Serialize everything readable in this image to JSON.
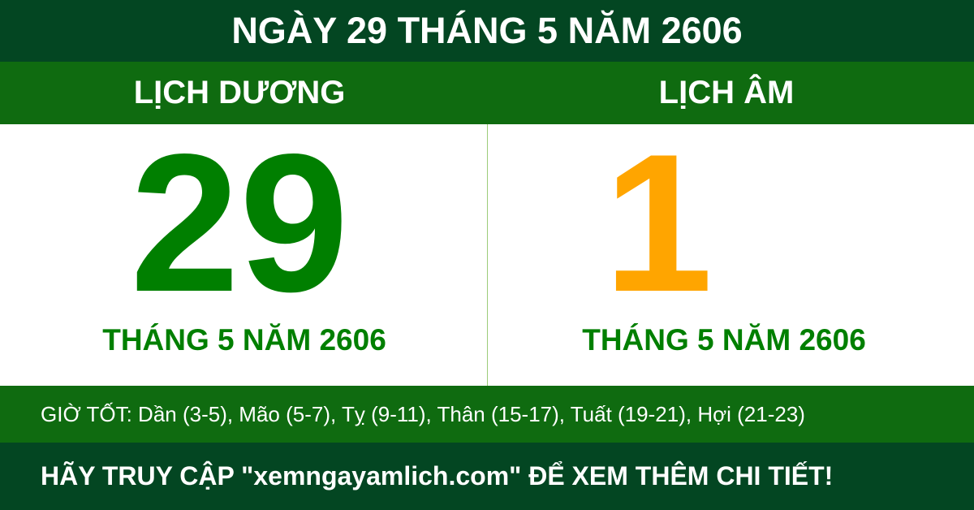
{
  "title": "NGÀY 29 THÁNG 5 NĂM 2606",
  "solar": {
    "heading": "LỊCH DƯƠNG",
    "day": "29",
    "month_year": "THÁNG 5 NĂM 2606"
  },
  "lunar": {
    "heading": "LỊCH ÂM",
    "day": "1",
    "month_year": "THÁNG 5 NĂM 2606"
  },
  "good_hours": "GIỜ TỐT: Dần (3-5), Mão (5-7), Tỵ (9-11), Thân (15-17), Tuất (19-21), Hợi (21-23)",
  "footer": "HÃY TRUY CẬP \"xemngayamlich.com\" ĐỂ XEM THÊM CHI TIẾT!",
  "colors": {
    "dark_green": "#034622",
    "band_green": "#0f6b10",
    "day_green": "#007f00",
    "lunar_orange": "#ffa500"
  }
}
